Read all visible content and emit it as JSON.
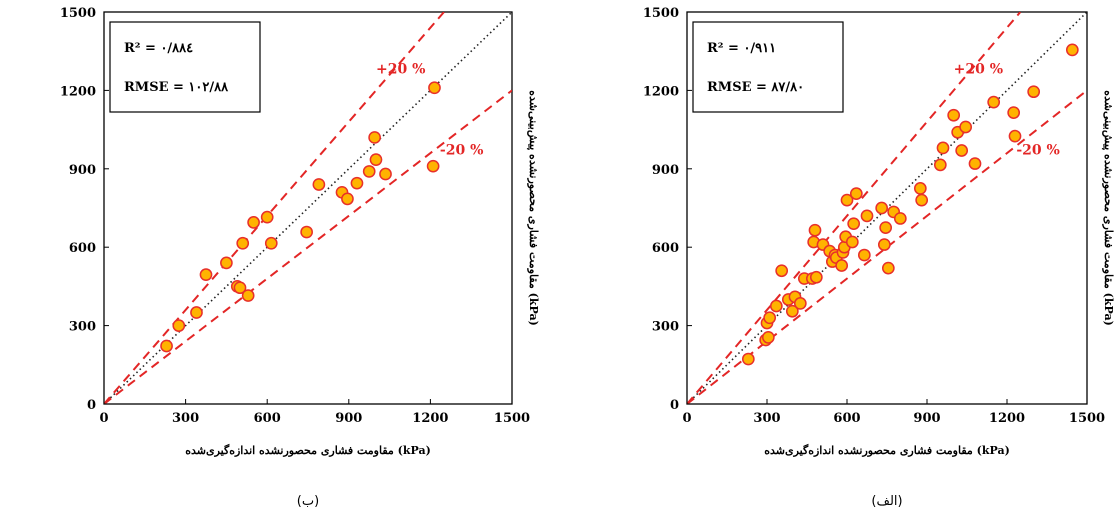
{
  "chart_data": [
    {
      "type": "scatter",
      "panel": "(ب)",
      "xlabel": "مقاومت فشاری محصورنشده اندازه‌گیری‌شده (kPa)",
      "ylabel": "مقاومت فشاری محصورنشده پیش‌بینی‌شده (kPa)",
      "xlim": [
        0,
        1500
      ],
      "ylim": [
        0,
        1500
      ],
      "xticks": [
        "0",
        "300",
        "600",
        "900",
        "1200",
        "1500"
      ],
      "yticks": [
        "0",
        "300",
        "600",
        "900",
        "1200",
        "1500"
      ],
      "stats": {
        "r2_label": "R² = ۰/۸۸٤",
        "rmse_label": "RMSE = ۱۰۲/۸۸"
      },
      "band_labels": {
        "upper": "+20 %",
        "lower": "-20 %"
      },
      "reference_lines": [
        "y = x",
        "y = 1.2x",
        "y = 0.8x"
      ],
      "grid": false,
      "points": [
        [
          230,
          222
        ],
        [
          275,
          300
        ],
        [
          340,
          350
        ],
        [
          375,
          495
        ],
        [
          450,
          540
        ],
        [
          490,
          450
        ],
        [
          500,
          445
        ],
        [
          510,
          615
        ],
        [
          530,
          415
        ],
        [
          550,
          695
        ],
        [
          600,
          715
        ],
        [
          615,
          615
        ],
        [
          745,
          658
        ],
        [
          790,
          840
        ],
        [
          875,
          810
        ],
        [
          895,
          785
        ],
        [
          930,
          845
        ],
        [
          975,
          890
        ],
        [
          995,
          1020
        ],
        [
          1000,
          935
        ],
        [
          1035,
          880
        ],
        [
          1210,
          910
        ],
        [
          1215,
          1210
        ]
      ]
    },
    {
      "type": "scatter",
      "panel": "(الف)",
      "xlabel": "مقاومت فشاری محصورنشده اندازه‌گیری‌شده (kPa)",
      "ylabel": "مقاومت فشاری محصورنشده پیش‌بینی‌شده (kPa)",
      "xlim": [
        0,
        1500
      ],
      "ylim": [
        0,
        1500
      ],
      "xticks": [
        "0",
        "300",
        "600",
        "900",
        "1200",
        "1500"
      ],
      "yticks": [
        "0",
        "300",
        "600",
        "900",
        "1200",
        "1500"
      ],
      "stats": {
        "r2_label": "R² = ۰/۹۱۱",
        "rmse_label": "RMSE = ۸۷/۸۰"
      },
      "band_labels": {
        "upper": "+20 %",
        "lower": "-20 %"
      },
      "reference_lines": [
        "y = x",
        "y = 1.2x",
        "y = 0.8x"
      ],
      "grid": false,
      "points": [
        [
          230,
          172
        ],
        [
          295,
          245
        ],
        [
          300,
          310
        ],
        [
          305,
          255
        ],
        [
          310,
          330
        ],
        [
          335,
          375
        ],
        [
          355,
          510
        ],
        [
          380,
          400
        ],
        [
          395,
          355
        ],
        [
          405,
          410
        ],
        [
          425,
          385
        ],
        [
          440,
          480
        ],
        [
          470,
          480
        ],
        [
          475,
          620
        ],
        [
          480,
          665
        ],
        [
          485,
          485
        ],
        [
          510,
          610
        ],
        [
          535,
          585
        ],
        [
          545,
          545
        ],
        [
          555,
          570
        ],
        [
          560,
          560
        ],
        [
          580,
          530
        ],
        [
          585,
          580
        ],
        [
          590,
          600
        ],
        [
          595,
          640
        ],
        [
          600,
          780
        ],
        [
          620,
          620
        ],
        [
          625,
          690
        ],
        [
          635,
          805
        ],
        [
          665,
          570
        ],
        [
          675,
          720
        ],
        [
          730,
          750
        ],
        [
          740,
          610
        ],
        [
          745,
          675
        ],
        [
          755,
          520
        ],
        [
          775,
          735
        ],
        [
          800,
          710
        ],
        [
          875,
          825
        ],
        [
          880,
          780
        ],
        [
          950,
          915
        ],
        [
          960,
          980
        ],
        [
          1000,
          1105
        ],
        [
          1015,
          1040
        ],
        [
          1030,
          970
        ],
        [
          1045,
          1060
        ],
        [
          1080,
          920
        ],
        [
          1150,
          1155
        ],
        [
          1225,
          1115
        ],
        [
          1230,
          1025
        ],
        [
          1300,
          1195
        ],
        [
          1445,
          1355
        ]
      ]
    }
  ]
}
